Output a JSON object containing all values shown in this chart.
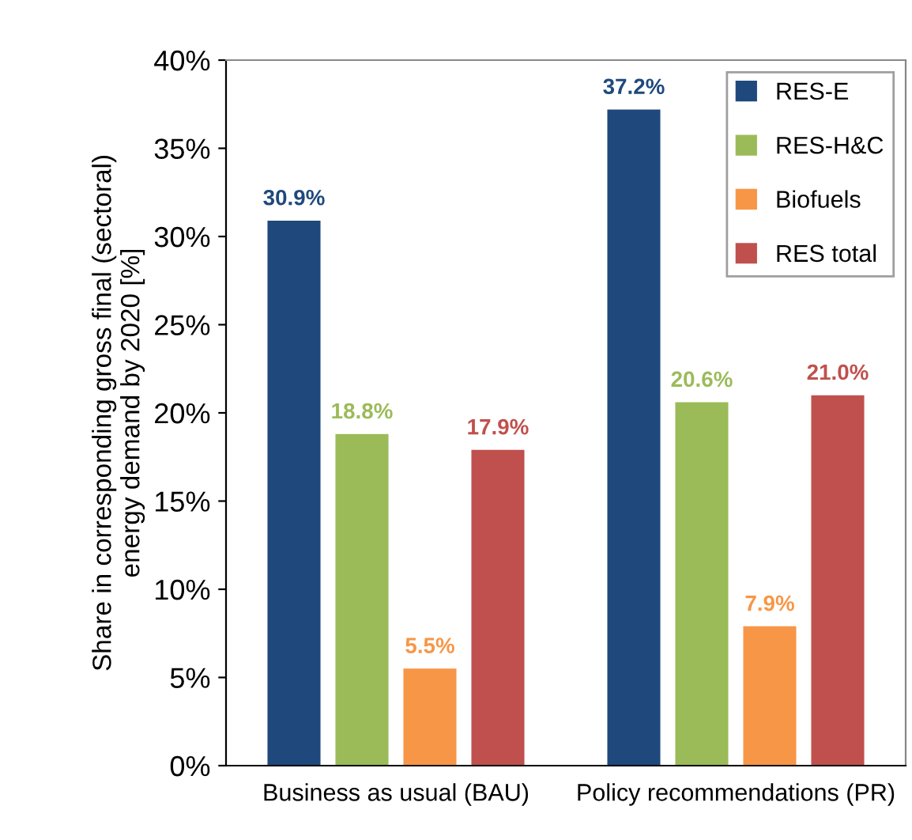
{
  "chart_data": {
    "type": "bar",
    "ylabel": "Share in corresponding gross final (sectoral)\nenergy demand by 2020 [%]",
    "categories": [
      "Business as usual (BAU)",
      "Policy recommendations (PR)"
    ],
    "series": [
      {
        "name": "RES-E",
        "color": "#1f497d",
        "values": [
          30.9,
          37.2
        ],
        "value_labels": [
          "30.9%",
          "37.2%"
        ]
      },
      {
        "name": "RES-H&C",
        "color": "#9bbb59",
        "values": [
          18.8,
          20.6
        ],
        "value_labels": [
          "18.8%",
          "20.6%"
        ]
      },
      {
        "name": "Biofuels",
        "color": "#f79646",
        "values": [
          5.5,
          7.9
        ],
        "value_labels": [
          "5.5%",
          "7.9%"
        ]
      },
      {
        "name": "RES total",
        "color": "#c0504d",
        "values": [
          17.9,
          21.0
        ],
        "value_labels": [
          "17.9%",
          "21.0%"
        ]
      }
    ],
    "ylim": [
      0,
      40
    ],
    "yticks": [
      {
        "value": 0,
        "label": "0%"
      },
      {
        "value": 5,
        "label": "5%"
      },
      {
        "value": 10,
        "label": "10%"
      },
      {
        "value": 15,
        "label": "15%"
      },
      {
        "value": 20,
        "label": "20%"
      },
      {
        "value": 25,
        "label": "25%"
      },
      {
        "value": 30,
        "label": "30%"
      },
      {
        "value": 35,
        "label": "35%"
      },
      {
        "value": 40,
        "label": "40%"
      }
    ],
    "grid": false,
    "legend": "top right"
  }
}
